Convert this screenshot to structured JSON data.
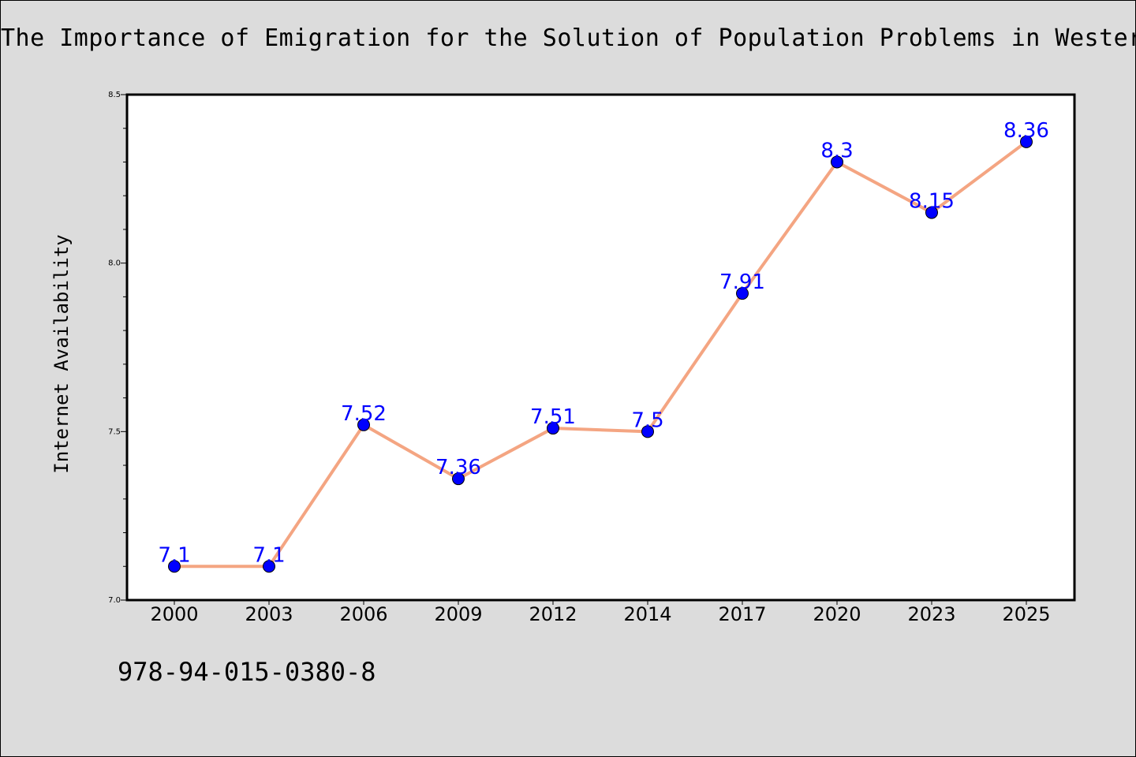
{
  "chart_data": {
    "type": "line",
    "title": "The Importance of Emigration for the Solution of Population Problems in Western",
    "xlabel": "",
    "ylabel": "Internet Availability",
    "categories": [
      "2000",
      "2003",
      "2006",
      "2009",
      "2012",
      "2014",
      "2017",
      "2020",
      "2023",
      "2025"
    ],
    "series": [
      {
        "values": [
          7.1,
          7.1,
          7.52,
          7.36,
          7.51,
          7.5,
          7.91,
          8.3,
          8.15,
          8.36
        ],
        "labels": [
          "7.1",
          "7.1",
          "7.52",
          "7.36",
          "7.51",
          "7.5",
          "7.91",
          "8.3",
          "8.15",
          "8.36"
        ]
      }
    ],
    "ylim": [
      7.0,
      8.5
    ],
    "yticks": [
      "7.0",
      "7.5",
      "8.0",
      "8.5"
    ],
    "grid": false,
    "line_color": "#f4a582",
    "marker_color": "#0000ff",
    "label_color": "#0000ff",
    "background_color": "#dcdcdc",
    "plot_background_color": "#ffffff"
  },
  "footer": {
    "code": "978-94-015-0380-8"
  }
}
